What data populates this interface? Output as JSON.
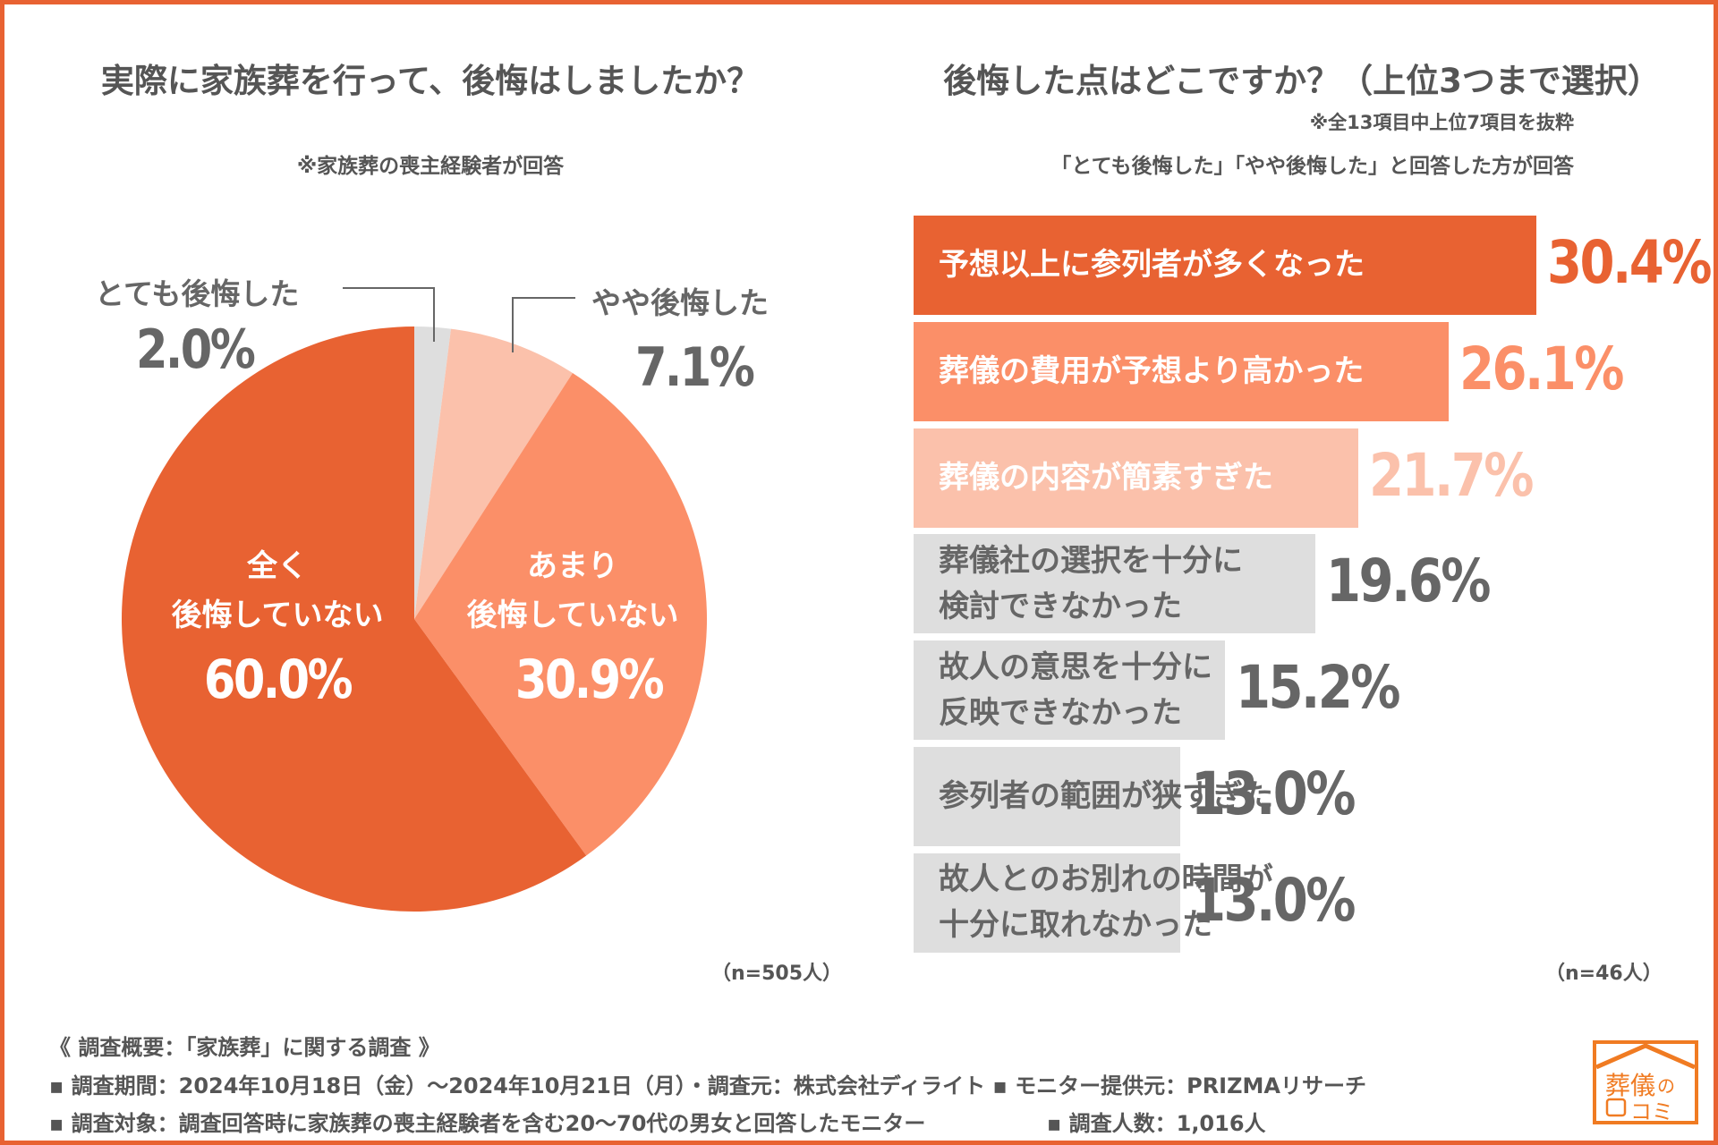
{
  "left": {
    "title": "実際に家族葬を行って、後悔はしましたか？",
    "note": "※家族葬の喪主経験者が回答",
    "n": "（n=505人）"
  },
  "right": {
    "title": "後悔した点はどこですか？（上位3つまで選択）",
    "note1": "※全13項目中上位7項目を抜粋",
    "note2": "「とても後悔した」「やや後悔した」と回答した方が回答",
    "n": "（n=46人）"
  },
  "chart_data": [
    {
      "type": "pie",
      "start": "top",
      "direction": "clockwise",
      "slices": [
        {
          "label": "とても後悔した",
          "value": 2.0,
          "display": "2.0%",
          "color": "#dedede"
        },
        {
          "label": "やや後悔した",
          "value": 7.1,
          "display": "7.1%",
          "color": "#fbc1ab"
        },
        {
          "label_line1": "あまり",
          "label_line2": "後悔していない",
          "value": 30.9,
          "display": "30.9%",
          "color": "#fb8f68"
        },
        {
          "label_line1": "全く",
          "label_line2": "後悔していない",
          "value": 60.0,
          "display": "60.0%",
          "color": "#e86232"
        }
      ]
    },
    {
      "type": "bar",
      "orientation": "horizontal",
      "unit": "%",
      "bars": [
        {
          "lines": [
            "予想以上に参列者が多くなった"
          ],
          "value": 30.4,
          "display": "30.4%",
          "color": "#e86232",
          "text_color": "#ffffff",
          "value_color": "#e86232"
        },
        {
          "lines": [
            "葬儀の費用が予想より高かった"
          ],
          "value": 26.1,
          "display": "26.1%",
          "color": "#fb8f68",
          "text_color": "#ffffff",
          "value_color": "#fb8f68"
        },
        {
          "lines": [
            "葬儀の内容が簡素すぎた"
          ],
          "value": 21.7,
          "display": "21.7%",
          "color": "#fbc1ab",
          "text_color": "#ffffff",
          "value_color": "#fbc1ab"
        },
        {
          "lines": [
            "葬儀社の選択を十分に",
            "検討できなかった"
          ],
          "value": 19.6,
          "display": "19.6%",
          "color": "#dedede",
          "text_color": "#666666",
          "value_color": "#666666"
        },
        {
          "lines": [
            "故人の意思を十分に",
            "反映できなかった"
          ],
          "value": 15.2,
          "display": "15.2%",
          "color": "#dedede",
          "text_color": "#666666",
          "value_color": "#666666"
        },
        {
          "lines": [
            "参列者の範囲が狭すぎた"
          ],
          "value": 13.0,
          "display": "13.0%",
          "color": "#dedede",
          "text_color": "#666666",
          "value_color": "#666666"
        },
        {
          "lines": [
            "故人とのお別れの時間が",
            "十分に取れなかった"
          ],
          "value": 13.0,
          "display": "13.0%",
          "color": "#dedede",
          "text_color": "#666666",
          "value_color": "#666666"
        }
      ]
    }
  ],
  "footer": {
    "heading": "《 調査概要：「家族葬」に関する調査 》",
    "line1": "▪ 調査期間：2024年10月18日（金）〜2024年10月21日（月）・調査元：株式会社ディライト ▪ モニター提供元：PRIZMAリサーチ",
    "line2a": "▪ 調査対象：調査回答時に家族葬の喪主経験者を含む20〜70代の男女と回答したモニター",
    "line2b": "▪ 調査人数：1,016人"
  },
  "logo": {
    "text1": "葬儀の",
    "text2": "コミ",
    "color": "#f07b22"
  },
  "accent": "#e86232"
}
